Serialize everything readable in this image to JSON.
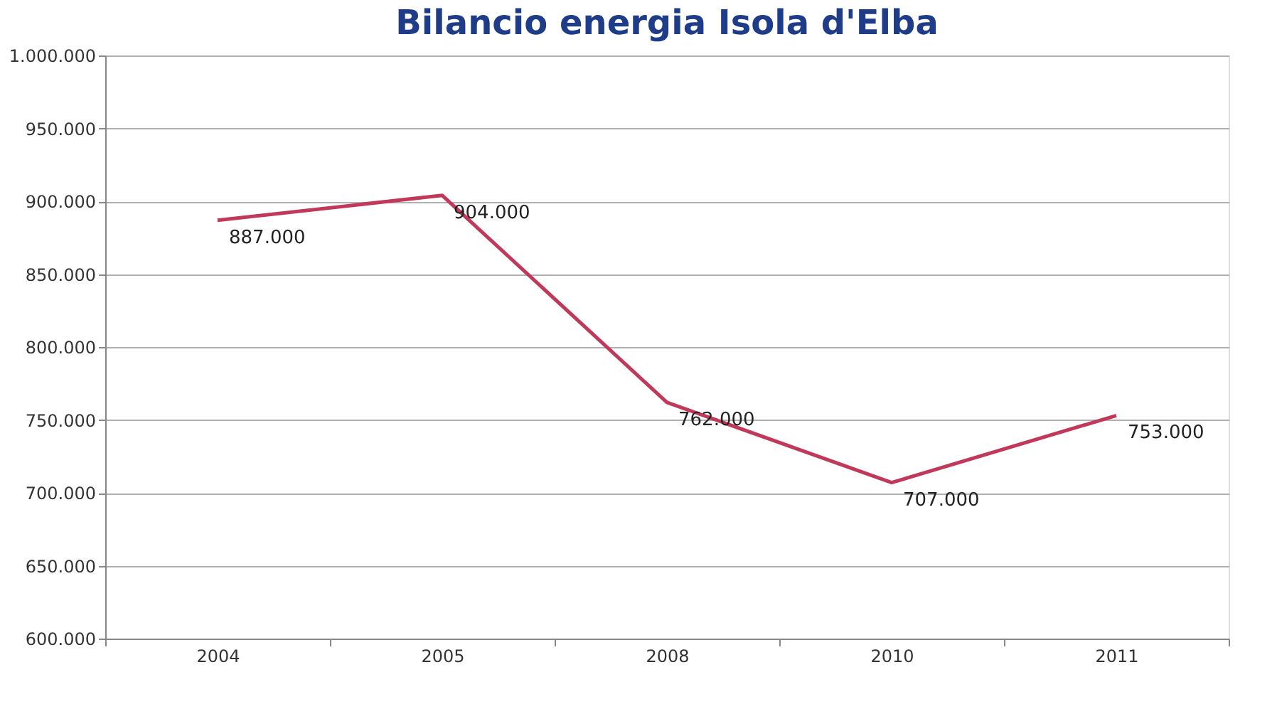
{
  "chart_data": {
    "type": "line",
    "title": "Bilancio energia Isola d'Elba",
    "categories": [
      "2004",
      "2005",
      "2008",
      "2010",
      "2011"
    ],
    "series": [
      {
        "color": "#c0395a",
        "values": [
          887000,
          904000,
          762000,
          707000,
          753000
        ],
        "value_labels": [
          "887.000",
          "904.000",
          "762.000",
          "707.000",
          "753.000"
        ]
      }
    ],
    "ylim": [
      600000,
      1000000
    ],
    "yticks": [
      {
        "value": 600000,
        "label": "600.000"
      },
      {
        "value": 650000,
        "label": "650.000"
      },
      {
        "value": 700000,
        "label": "700.000"
      },
      {
        "value": 750000,
        "label": "750.000"
      },
      {
        "value": 800000,
        "label": "800.000"
      },
      {
        "value": 850000,
        "label": "850.000"
      },
      {
        "value": 900000,
        "label": "900.000"
      },
      {
        "value": 950000,
        "label": "950.000"
      },
      {
        "value": 1000000,
        "label": "1.000.000"
      }
    ],
    "grid": "y",
    "marker": "none",
    "line_style": "solid"
  }
}
